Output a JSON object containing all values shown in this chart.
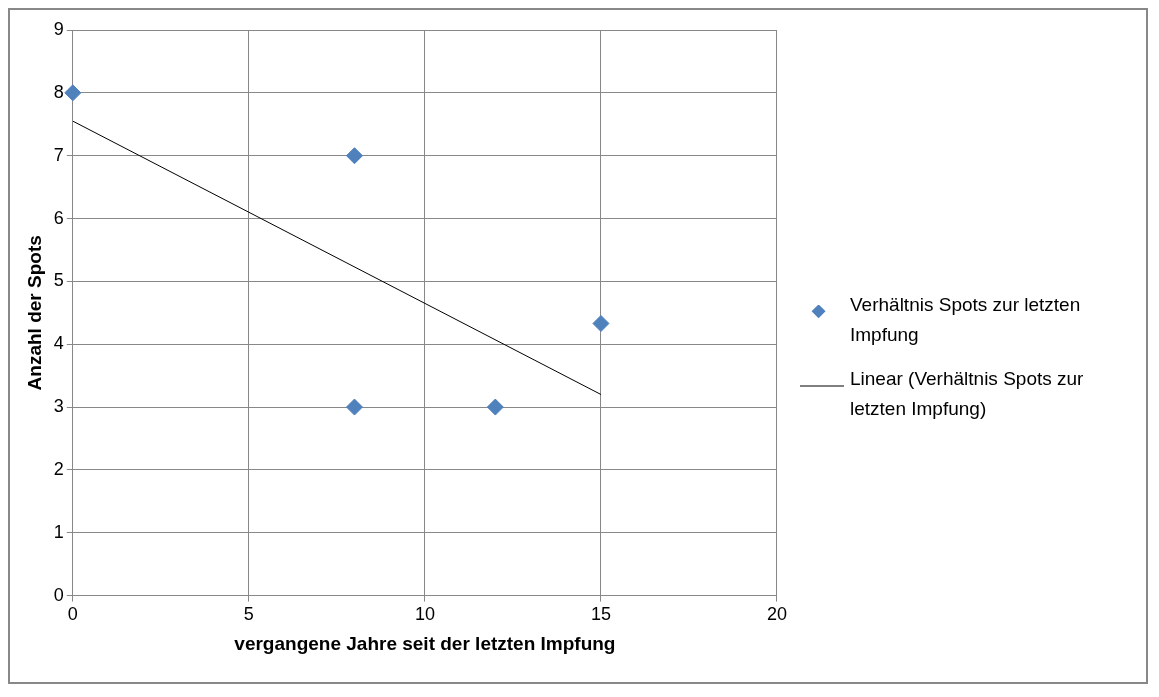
{
  "chart_data": {
    "type": "scatter",
    "xlabel": "vergangene Jahre seit der letzten Impfung",
    "ylabel": "Anzahl der Spots",
    "xlim": [
      0,
      20
    ],
    "xticks": [
      0,
      5,
      10,
      15,
      20
    ],
    "ylim": [
      0,
      9
    ],
    "yticks": [
      0,
      1,
      2,
      3,
      4,
      5,
      6,
      7,
      8,
      9
    ],
    "grid": true,
    "legend": "right",
    "series": [
      {
        "name": "Verhältnis Spots zur letzten Impfung",
        "type": "scatter",
        "color": "#4f81bd",
        "marker": "diamond",
        "x": [
          0,
          8,
          8,
          12,
          15
        ],
        "values": [
          8,
          7,
          3,
          3,
          4.33
        ]
      },
      {
        "name": "Linear (Verhältnis Spots zur letzten Impfung)",
        "type": "line",
        "color": "#000000",
        "marker": "none",
        "line_style": "solid",
        "x": [
          0,
          15
        ],
        "values": [
          7.55,
          3.2
        ]
      }
    ]
  }
}
